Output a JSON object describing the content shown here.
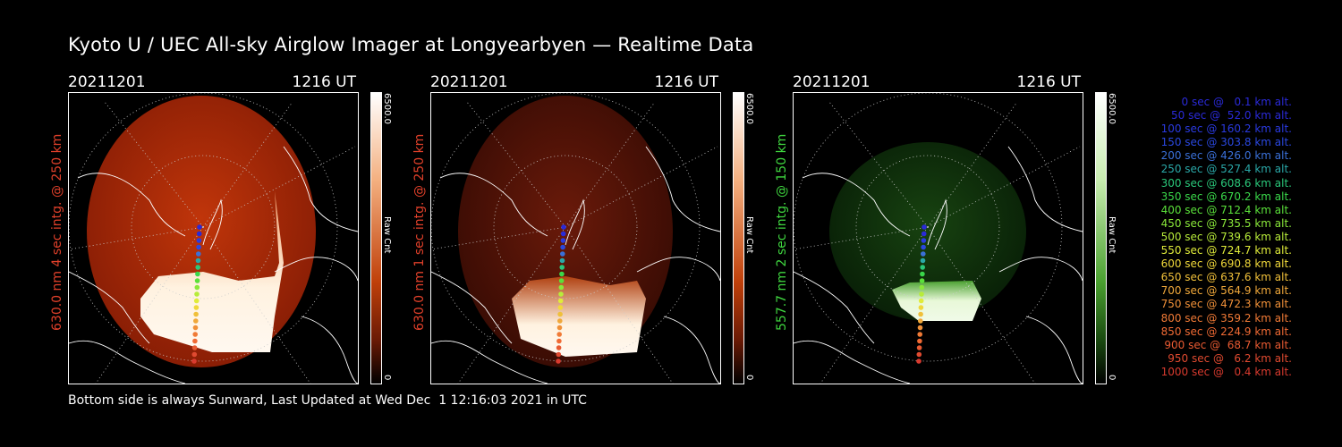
{
  "title": "Kyoto U / UEC All-sky Airglow Imager at Longyearbyen — Realtime Data",
  "panels": [
    {
      "date": "20211201",
      "time": "1216 UT",
      "side_label": "630.0 nm 4 sec intg. @ 250 km",
      "label_color": "#e0402a",
      "cbar_max": "6500.0",
      "cbar_min": "0",
      "cbar_label": "Raw Cnt",
      "scheme": "red"
    },
    {
      "date": "20211201",
      "time": "1216 UT",
      "side_label": "630.0 nm 1 sec intg. @ 250 km",
      "label_color": "#e0402a",
      "cbar_max": "6500.0",
      "cbar_min": "0",
      "cbar_label": "Raw Cnt",
      "scheme": "red"
    },
    {
      "date": "20211201",
      "time": "1216 UT",
      "side_label": "557.7 nm 2 sec intg. @ 150 km",
      "label_color": "#3fd63f",
      "cbar_max": "6500.0",
      "cbar_min": "0",
      "cbar_label": "Raw Cnt",
      "scheme": "green"
    }
  ],
  "footer": "Bottom side is always Sunward, Last Updated at Wed Dec  1 12:16:03 2021 in UTC",
  "legend": [
    {
      "text": "0 sec @   0.1 km alt.",
      "color": "#2a2ad8"
    },
    {
      "text": "50 sec @  52.0 km alt.",
      "color": "#2a2ad8"
    },
    {
      "text": "100 sec @ 160.2 km alt.",
      "color": "#2a3ae0"
    },
    {
      "text": "150 sec @ 303.8 km alt.",
      "color": "#2a48e0"
    },
    {
      "text": "200 sec @ 426.0 km alt.",
      "color": "#3a70d8"
    },
    {
      "text": "250 sec @ 527.4 km alt.",
      "color": "#2aa8a8"
    },
    {
      "text": "300 sec @ 608.6 km alt.",
      "color": "#2ac87a"
    },
    {
      "text": "350 sec @ 670.2 km alt.",
      "color": "#3ad84a"
    },
    {
      "text": "400 sec @ 712.4 km alt.",
      "color": "#5ae03a"
    },
    {
      "text": "450 sec @ 735.5 km alt.",
      "color": "#8ae83a"
    },
    {
      "text": "500 sec @ 739.6 km alt.",
      "color": "#b8ec3a"
    },
    {
      "text": "550 sec @ 724.7 km alt.",
      "color": "#e0ec3a"
    },
    {
      "text": "600 sec @ 690.8 km alt.",
      "color": "#f0d83a"
    },
    {
      "text": "650 sec @ 637.6 km alt.",
      "color": "#f0c03a"
    },
    {
      "text": "700 sec @ 564.9 km alt.",
      "color": "#f0a83a"
    },
    {
      "text": "750 sec @ 472.3 km alt.",
      "color": "#f09038"
    },
    {
      "text": "800 sec @ 359.2 km alt.",
      "color": "#f07a36"
    },
    {
      "text": "850 sec @ 224.9 km alt.",
      "color": "#f06a34"
    },
    {
      "text": "900 sec @  68.7 km alt.",
      "color": "#e85a32"
    },
    {
      "text": "950 sec @   6.2 km alt.",
      "color": "#e04a30"
    },
    {
      "text": "1000 sec @   0.4 km alt.",
      "color": "#d83a2e"
    }
  ]
}
